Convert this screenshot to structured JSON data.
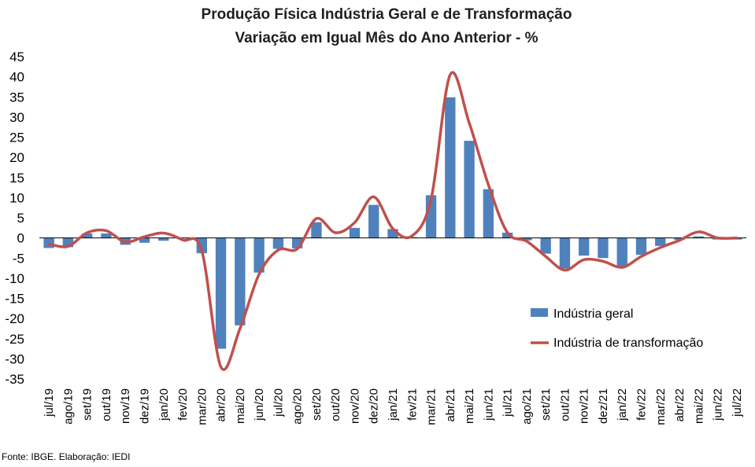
{
  "chart_data": {
    "type": "bar",
    "title": "Produção Física Indústria Geral e de Transformação",
    "subtitle": "Variação em Igual Mês do Ano Anterior - %",
    "ylim": [
      -35,
      45
    ],
    "y_ticks": [
      45,
      40,
      35,
      30,
      25,
      20,
      15,
      10,
      5,
      0,
      -5,
      -10,
      -15,
      -20,
      -25,
      -30,
      -35
    ],
    "grid": false,
    "legend_position": "right",
    "categories": [
      "jul/19",
      "ago/19",
      "set/19",
      "out/19",
      "nov/19",
      "dez/19",
      "jan/20",
      "fev/20",
      "mar/20",
      "abr/20",
      "mai/20",
      "jun/20",
      "jul/20",
      "ago/20",
      "set/20",
      "out/20",
      "nov/20",
      "dez/20",
      "jan/21",
      "fev/21",
      "mar/21",
      "abr/21",
      "mai/21",
      "jun/21",
      "jul/21",
      "ago/21",
      "set/21",
      "out/21",
      "nov/21",
      "dez/21",
      "jan/22",
      "fev/22",
      "mar/22",
      "abr/22",
      "mai/22",
      "jun/22",
      "jul/22"
    ],
    "series": [
      {
        "name": "Indústria geral",
        "kind": "bar",
        "color": "#4f81bd",
        "values": [
          -2.5,
          -2.3,
          1.1,
          1.1,
          -1.7,
          -1.2,
          -0.7,
          -0.1,
          -3.8,
          -27.5,
          -21.7,
          -8.6,
          -2.7,
          -2.6,
          3.9,
          0.0,
          2.5,
          8.2,
          2.2,
          0.2,
          10.6,
          34.9,
          24.1,
          12.1,
          1.3,
          -0.6,
          -3.9,
          -7.6,
          -4.4,
          -5.0,
          -7.2,
          -4.2,
          -2.0,
          -0.5,
          0.4,
          -0.4,
          -0.4
        ]
      },
      {
        "name": "Indústria de transformação",
        "kind": "line",
        "color": "#c0504d",
        "values": [
          -1.5,
          -2.1,
          1.3,
          1.8,
          -1.0,
          0.3,
          1.2,
          -0.5,
          -3.2,
          -32.0,
          -22.5,
          -9.0,
          -3.0,
          -2.7,
          4.8,
          1.3,
          3.8,
          10.2,
          2.3,
          0.5,
          9.6,
          40.5,
          28.5,
          13.2,
          1.3,
          -0.8,
          -4.6,
          -8.0,
          -5.4,
          -5.8,
          -7.3,
          -4.6,
          -2.4,
          -0.6,
          1.5,
          0.0,
          0.0
        ]
      }
    ]
  },
  "source": "Fonte: IBGE. Elaboração: IEDI"
}
